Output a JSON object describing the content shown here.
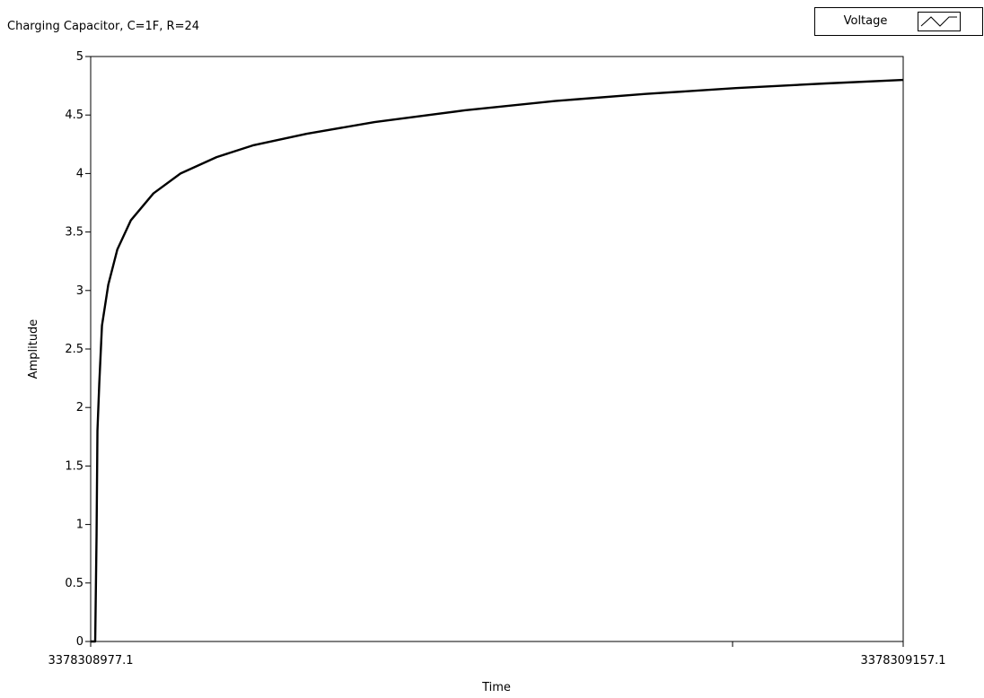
{
  "chart_data": {
    "type": "line",
    "title": "Charging Capacitor, C=1F, R=24",
    "xlabel": "Time",
    "ylabel": "Amplitude",
    "xlim": [
      3378308977.1,
      3378309157.1
    ],
    "ylim": [
      0,
      5
    ],
    "x_tick_labels": [
      "3378308977.1",
      "3378309157.1"
    ],
    "y_ticks": [
      0,
      0.5,
      1,
      1.5,
      2,
      2.5,
      3,
      3.5,
      4,
      4.5,
      5
    ],
    "y_tick_labels": [
      "0",
      "0.5",
      "1",
      "1.5",
      "2",
      "2.5",
      "3",
      "3.5",
      "4",
      "4.5",
      "5"
    ],
    "grid": false,
    "legend_position": "top-right",
    "series": [
      {
        "name": "Voltage",
        "color": "#000000",
        "x": [
          3378308977.1,
          3378308978.1,
          3378308978.4,
          3378308978.6,
          3378308979.0,
          3378308979.6,
          3378308981.0,
          3378308983.0,
          3378308986.0,
          3378308991.0,
          3378308997.0,
          3378309005.0,
          3378309013.0,
          3378309025.0,
          3378309040.0,
          3378309060.0,
          3378309080.0,
          3378309100.0,
          3378309120.0,
          3378309140.0,
          3378309157.1
        ],
        "y": [
          0,
          0,
          0.9,
          1.8,
          2.2,
          2.7,
          3.05,
          3.35,
          3.6,
          3.83,
          4.0,
          4.14,
          4.24,
          4.34,
          4.44,
          4.54,
          4.62,
          4.68,
          4.73,
          4.77,
          4.8
        ]
      }
    ]
  },
  "legend": {
    "label": "Voltage",
    "swatch_icon": "line-sample-icon"
  }
}
